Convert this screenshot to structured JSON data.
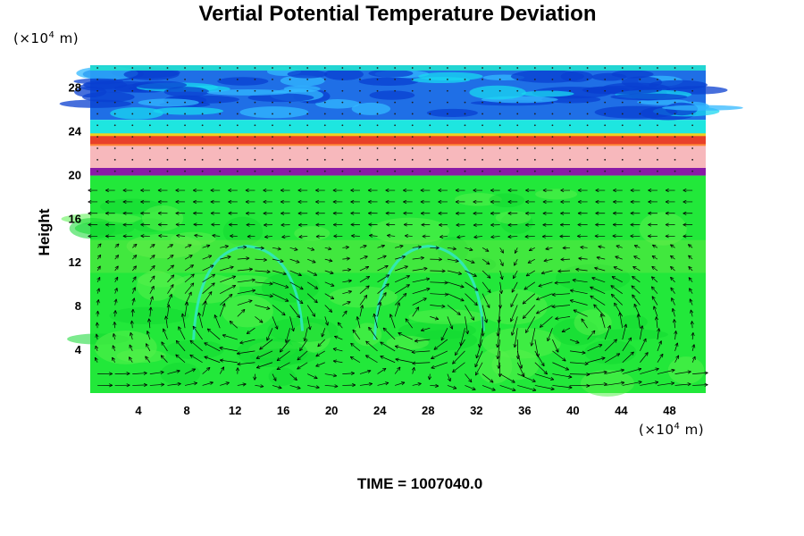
{
  "chart_data": {
    "type": "heatmap",
    "title": "Vertial Potential Temperature Deviation",
    "ylabel": "Height",
    "y_unit_prefix": "(×10",
    "y_unit_exp": "4",
    "y_unit_suffix": " m)",
    "x_unit_prefix": "(×10",
    "x_unit_exp": "4",
    "x_unit_suffix": " m)",
    "xlim": [
      0,
      51
    ],
    "ylim": [
      0,
      30
    ],
    "x_ticks": [
      4,
      8,
      12,
      16,
      20,
      24,
      28,
      32,
      36,
      40,
      44,
      48
    ],
    "y_ticks": [
      4,
      8,
      12,
      16,
      20,
      24,
      28
    ],
    "time_label": "TIME = 1007040.0",
    "layers": [
      {
        "name": "upper-blue",
        "y0": 25.0,
        "y1": 30.0,
        "color": "#1f6fe6"
      },
      {
        "name": "cyan-band",
        "y0": 23.6,
        "y1": 25.0,
        "color": "#1ee6e0"
      },
      {
        "name": "red-band",
        "y0": 22.7,
        "y1": 23.6,
        "color": "#e8402a"
      },
      {
        "name": "pink-band",
        "y0": 20.6,
        "y1": 22.7,
        "color": "#f7b8bc"
      },
      {
        "name": "purple-band",
        "y0": 19.9,
        "y1": 20.6,
        "color": "#8a1aa6"
      },
      {
        "name": "lower-green",
        "y0": 0.0,
        "y1": 19.9,
        "color": "#22e83a"
      }
    ],
    "cells": [
      {
        "center_x": 13,
        "center_y": 6.5,
        "direction": "clockwise"
      },
      {
        "center_x": 28,
        "center_y": 6.5,
        "direction": "clockwise"
      },
      {
        "center_x": 40,
        "center_y": 5.5,
        "direction": "counterclockwise"
      }
    ]
  }
}
